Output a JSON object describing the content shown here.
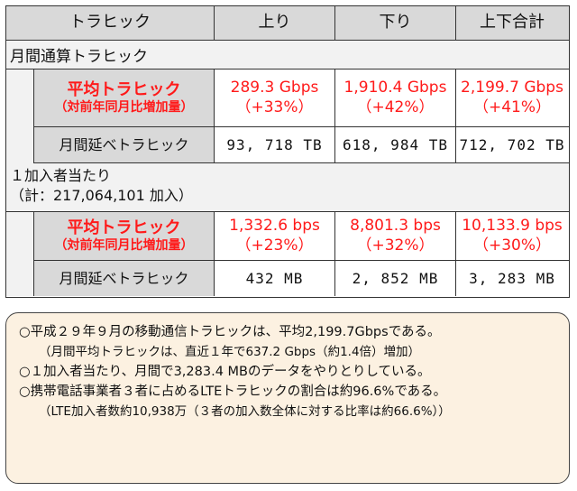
{
  "header": {
    "col0": "トラヒック",
    "col1": "上り",
    "col2": "下り",
    "col3": "上下合計"
  },
  "monthly": {
    "section_title": "月間通算トラヒック",
    "avg_label_main": "平均トラヒック",
    "avg_label_sub": "（対前年同月比増加量）",
    "avg_up": "289.3 Gbps",
    "avg_up_growth": "（+33%）",
    "avg_down": "1,910.4 Gbps",
    "avg_down_growth": "（+42%）",
    "avg_total": "2,199.7 Gbps",
    "avg_total_growth": "（+41%）",
    "vol_label": "月間延べトラヒック",
    "vol_up": "93, 718 TB",
    "vol_down": "618, 984 TB",
    "vol_total": "712, 702 TB"
  },
  "per_sub": {
    "section_title_line1": "１加入者当たり",
    "section_title_line2": "（計：217,064,101 加入）",
    "avg_label_main": "平均トラヒック",
    "avg_label_sub": "（対前年同月比増加量）",
    "avg_up": "1,332.6 bps",
    "avg_up_growth": "（+23%）",
    "avg_down": "8,801.3 bps",
    "avg_down_growth": "（+32%）",
    "avg_total": "10,133.9 bps",
    "avg_total_growth": "（+30%）",
    "vol_label": "月間延べトラヒック",
    "vol_up": "432 MB",
    "vol_down": "2, 852 MB",
    "vol_total": "3, 283 MB"
  },
  "notes": [
    {
      "text": "○平成２９年９月の移動通信トラヒックは、平均2,199.7Gbpsである。",
      "sub": false
    },
    {
      "text": "（月間平均トラヒックは、直近１年で637.2 Gbps（約1.4倍）増加）",
      "sub": true
    },
    {
      "text": "○１加入者当たり、月間で3,283.4 MBのデータをやりとりしている。",
      "sub": false
    },
    {
      "text": "○携帯電話事業者３者に占めるLTEトラヒックの割合は約96.6%である。",
      "sub": false
    },
    {
      "text": "（LTE加入者数約10,938万（３者の加入数全体に対する比率は約66.6%））",
      "sub": true
    }
  ],
  "colors": {
    "accent_red": "#ff1a1a",
    "header_gray": "#d9d9d9",
    "note_bg": "#fcf1e1"
  }
}
